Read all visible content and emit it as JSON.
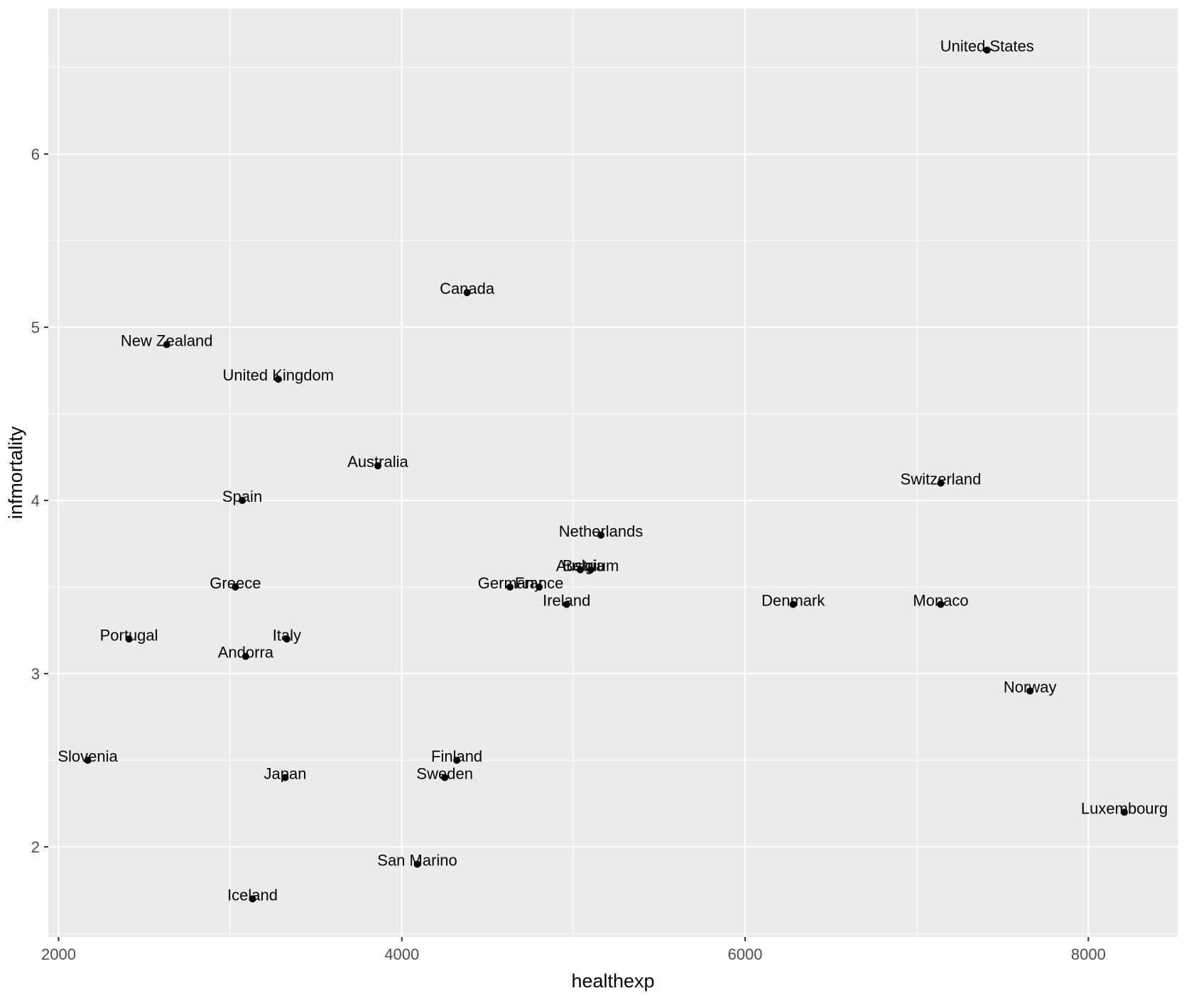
{
  "chart_data": {
    "type": "scatter",
    "xlabel": "healthexp",
    "ylabel": "infmortality",
    "xlim": [
      1940,
      8520
    ],
    "ylim": [
      1.48,
      6.84
    ],
    "x_ticks": [
      2000,
      4000,
      6000,
      8000
    ],
    "y_ticks": [
      2,
      3,
      4,
      5,
      6
    ],
    "x_tick_labels": [
      "2000",
      "4000",
      "6000",
      "8000"
    ],
    "y_tick_labels": [
      "2",
      "3",
      "4",
      "5",
      "6"
    ],
    "grid": true,
    "legend": "none",
    "colors": {
      "panel_background": "#ebebeb",
      "grid_line": "#ffffff",
      "point": "#000000",
      "text": "#000000",
      "tick_text": "#4d4d4d"
    },
    "points": [
      {
        "label": "United States",
        "x": 7410,
        "y": 6.6
      },
      {
        "label": "Canada",
        "x": 4380,
        "y": 5.2
      },
      {
        "label": "New Zealand",
        "x": 2630,
        "y": 4.9
      },
      {
        "label": "United Kingdom",
        "x": 3280,
        "y": 4.7
      },
      {
        "label": "Australia",
        "x": 3860,
        "y": 4.2
      },
      {
        "label": "Switzerland",
        "x": 7140,
        "y": 4.1
      },
      {
        "label": "Spain",
        "x": 3070,
        "y": 4.0
      },
      {
        "label": "Netherlands",
        "x": 5160,
        "y": 3.8
      },
      {
        "label": "Austria",
        "x": 5040,
        "y": 3.6
      },
      {
        "label": "Belgium",
        "x": 5100,
        "y": 3.6
      },
      {
        "label": "Greece",
        "x": 3030,
        "y": 3.5
      },
      {
        "label": "Germany",
        "x": 4630,
        "y": 3.5
      },
      {
        "label": "France",
        "x": 4800,
        "y": 3.5
      },
      {
        "label": "Ireland",
        "x": 4960,
        "y": 3.4
      },
      {
        "label": "Denmark",
        "x": 6280,
        "y": 3.4
      },
      {
        "label": "Monaco",
        "x": 7140,
        "y": 3.4
      },
      {
        "label": "Portugal",
        "x": 2410,
        "y": 3.2
      },
      {
        "label": "Italy",
        "x": 3330,
        "y": 3.2
      },
      {
        "label": "Andorra",
        "x": 3090,
        "y": 3.1
      },
      {
        "label": "Norway",
        "x": 7660,
        "y": 2.9
      },
      {
        "label": "Slovenia",
        "x": 2170,
        "y": 2.5
      },
      {
        "label": "Finland",
        "x": 4320,
        "y": 2.5
      },
      {
        "label": "Japan",
        "x": 3320,
        "y": 2.4
      },
      {
        "label": "Sweden",
        "x": 4250,
        "y": 2.4
      },
      {
        "label": "Luxembourg",
        "x": 8210,
        "y": 2.2
      },
      {
        "label": "San Marino",
        "x": 4090,
        "y": 1.9
      },
      {
        "label": "Iceland",
        "x": 3130,
        "y": 1.7
      }
    ]
  }
}
